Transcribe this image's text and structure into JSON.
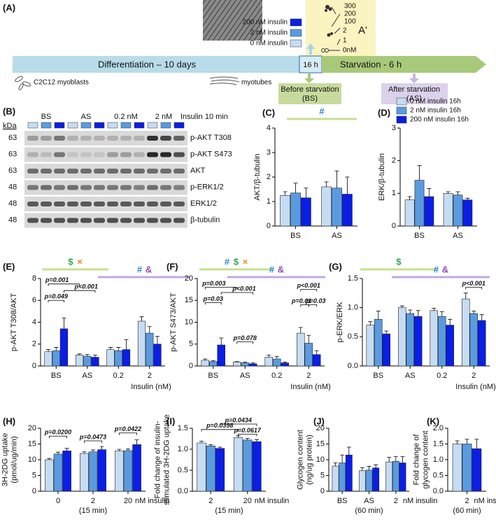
{
  "schematic": {
    "label": "(A)",
    "legend": [
      "200 nM insulin",
      "2 nM insulin",
      "0 nM insulin"
    ],
    "inset": {
      "ticks": [
        "300",
        "200",
        "100",
        "2",
        "1",
        "0nM"
      ],
      "label": "A'"
    },
    "timeline": {
      "differentiation": "Differentiation – 10 days",
      "pretreatment": "16 h",
      "starvation": "Starvation - 6 h"
    },
    "cells": {
      "myoblasts": "C2C12 myoblasts",
      "myotubes": "myotubes"
    },
    "before": [
      "Before starvation",
      "(BS)"
    ],
    "after": [
      "After starvation",
      "(AS)"
    ]
  },
  "blot": {
    "label": "(B)",
    "unit": "kDa",
    "lanes": [
      "BS",
      "AS",
      "0.2 nM",
      "2 nM"
    ],
    "treatment": "Insulin 10 min",
    "rows": [
      {
        "kda": "63",
        "name": "p-AKT T308"
      },
      {
        "kda": "63",
        "name": "p-AKT S473"
      },
      {
        "kda": "63",
        "name": "AKT"
      },
      {
        "kda": "48",
        "name": "p-ERK1/2"
      },
      {
        "kda": "48",
        "name": "ERK1/2"
      },
      {
        "kda": "48",
        "name": "β-tubulin"
      }
    ]
  },
  "chart_data": [
    {
      "type": "bar",
      "panel": "(C)",
      "ylabel": [
        "AKT/β-tubulin"
      ],
      "categories": [
        "BS",
        "AS"
      ],
      "ylim": [
        0,
        4
      ],
      "yticks": [
        0,
        1,
        2,
        3,
        4
      ],
      "series": [
        {
          "color": "#c6dcf2",
          "values": [
            1.25,
            1.6
          ],
          "errors": [
            0.15,
            0.2
          ]
        },
        {
          "color": "#5a9be0",
          "values": [
            1.35,
            1.55
          ],
          "errors": [
            0.4,
            0.7
          ]
        },
        {
          "color": "#0a1ee6",
          "values": [
            1.15,
            1.3
          ],
          "errors": [
            0.4,
            0.7
          ]
        }
      ],
      "groups": [
        {
          "color": "#c5e08f",
          "symbols": [
            {
              "text": "#",
              "color": "#2a8ad8"
            }
          ]
        }
      ]
    },
    {
      "type": "bar",
      "panel": "(D)",
      "ylabel": [
        "ERK/β-tubulin"
      ],
      "categories": [
        "BS",
        "AS"
      ],
      "ylim": [
        0,
        3
      ],
      "yticks": [
        0,
        1,
        2,
        3
      ],
      "legend": "top",
      "series": [
        {
          "name": "0 nM insulin 16h",
          "color": "#c6dcf2",
          "values": [
            0.8,
            1.0
          ],
          "errors": [
            0.1,
            0.05
          ]
        },
        {
          "name": "2 nM insulin 16h",
          "color": "#5a9be0",
          "values": [
            1.4,
            0.95
          ],
          "errors": [
            0.45,
            0.1
          ]
        },
        {
          "name": "200 nM insulin 16h",
          "color": "#0a1ee6",
          "values": [
            0.9,
            0.8
          ],
          "errors": [
            0.25,
            0.05
          ]
        }
      ]
    },
    {
      "type": "bar",
      "panel": "(E)",
      "ylabel": [
        "p-AKT T308/AKT"
      ],
      "xlabel": "Insulin (nM)",
      "categories": [
        "BS",
        "AS",
        "0.2",
        "2"
      ],
      "ylim": [
        0,
        8
      ],
      "yticks": [
        0,
        2,
        4,
        6,
        8
      ],
      "series": [
        {
          "color": "#c6dcf2",
          "values": [
            1.3,
            1.0,
            1.5,
            4.1
          ],
          "errors": [
            0.2,
            0.1,
            0.2,
            0.4
          ]
        },
        {
          "color": "#5a9be0",
          "values": [
            1.4,
            0.9,
            1.4,
            3.0
          ],
          "errors": [
            0.3,
            0.15,
            0.3,
            0.6
          ]
        },
        {
          "color": "#0a1ee6",
          "values": [
            3.4,
            0.8,
            1.5,
            2.0
          ],
          "errors": [
            1.0,
            0.2,
            0.9,
            0.7
          ]
        }
      ],
      "groups": [
        {
          "color": "#c5e08f",
          "symbols": [
            {
              "text": "$",
              "color": "#2fa84f"
            },
            {
              "text": "×",
              "color": "#e8862a"
            }
          ]
        },
        {
          "color": "#c3a9dc",
          "symbols": [
            {
              "text": "#",
              "color": "#2a8ad8"
            },
            {
              "text": "&",
              "color": "#8a4fb8"
            }
          ]
        }
      ],
      "brackets": [
        "p=0.001",
        "p=0.049",
        "p<0.001"
      ]
    },
    {
      "type": "bar",
      "panel": "(F)",
      "ylabel": [
        "p-AKT S473/AKT"
      ],
      "xlabel": "Insulin (nM)",
      "categories": [
        "BS",
        "AS",
        "0.2",
        "2"
      ],
      "ylim": [
        0,
        20
      ],
      "yticks": [
        0,
        5,
        10,
        15,
        20
      ],
      "series": [
        {
          "color": "#c6dcf2",
          "values": [
            1.3,
            0.9,
            2.0,
            7.5
          ],
          "errors": [
            0.3,
            0.1,
            0.5,
            1.3
          ]
        },
        {
          "color": "#5a9be0",
          "values": [
            1.0,
            0.7,
            1.6,
            5.2
          ],
          "errors": [
            0.2,
            0.2,
            0.6,
            1.8
          ]
        },
        {
          "color": "#0a1ee6",
          "values": [
            4.8,
            0.5,
            0.7,
            2.6
          ],
          "errors": [
            1.6,
            0.2,
            0.2,
            0.9
          ]
        }
      ],
      "groups": [
        {
          "color": "#c5e08f",
          "symbols": [
            {
              "text": "#",
              "color": "#2a8ad8"
            },
            {
              "text": "$",
              "color": "#2fa84f"
            },
            {
              "text": "×",
              "color": "#e8862a"
            }
          ]
        },
        {
          "color": "#c3a9dc",
          "symbols": [
            {
              "text": "#",
              "color": "#2a8ad8"
            },
            {
              "text": "&",
              "color": "#8a4fb8"
            }
          ]
        }
      ],
      "brackets": [
        "p=0.003",
        "p=0.03",
        "p<0.001",
        "p=0.078",
        "p<0.001",
        "p=0.01",
        "p=0.03"
      ]
    },
    {
      "type": "bar",
      "panel": "(G)",
      "ylabel": [
        "p-ERK/ERK"
      ],
      "xlabel": "Insulin (nM)",
      "categories": [
        "BS",
        "AS",
        "0.2",
        "2"
      ],
      "ylim": [
        0,
        1.5
      ],
      "yticks": [
        {
          "value": 0,
          "label": "0.0"
        },
        0.5,
        {
          "value": 1,
          "label": "1.0"
        },
        1.5
      ],
      "series": [
        {
          "color": "#c6dcf2",
          "values": [
            0.7,
            1.0,
            0.95,
            1.15
          ],
          "errors": [
            0.06,
            0.03,
            0.04,
            0.1
          ]
        },
        {
          "color": "#5a9be0",
          "values": [
            0.8,
            0.9,
            0.85,
            0.9
          ],
          "errors": [
            0.14,
            0.06,
            0.08,
            0.04
          ]
        },
        {
          "color": "#0a1ee6",
          "values": [
            0.55,
            0.85,
            0.7,
            0.78
          ],
          "errors": [
            0.05,
            0.1,
            0.1,
            0.1
          ]
        }
      ],
      "groups": [
        {
          "color": "#c5e08f",
          "symbols": [
            {
              "text": "$",
              "color": "#2fa84f"
            }
          ]
        },
        {
          "color": "#c3a9dc",
          "symbols": [
            {
              "text": "#",
              "color": "#2a8ad8"
            },
            {
              "text": "&",
              "color": "#8a4fb8"
            }
          ]
        }
      ],
      "brackets": [
        "p<0.001"
      ]
    },
    {
      "type": "bar",
      "panel": "(H)",
      "ylabel": [
        "3H-2DG uptake",
        "(pmol/ug/min)"
      ],
      "categories": [
        "0",
        "2",
        "20"
      ],
      "x_unit": "nM insulin",
      "x_note": "(15 min)",
      "ylim": [
        0,
        20
      ],
      "yticks": [
        0,
        5,
        10,
        15,
        20
      ],
      "series": [
        {
          "color": "#c6dcf2",
          "values": [
            10,
            12,
            12.8
          ],
          "errors": [
            0.4,
            0.5,
            0.5
          ]
        },
        {
          "color": "#5a9be0",
          "values": [
            11.8,
            12.5,
            12.9
          ],
          "errors": [
            0.6,
            0.6,
            0.5
          ]
        },
        {
          "color": "#0a1ee6",
          "values": [
            12.8,
            13.2,
            14.8
          ],
          "errors": [
            0.8,
            1.0,
            1.5
          ]
        }
      ],
      "brackets": [
        "p=0.0200",
        "p=0.0473",
        "p=0.0422"
      ]
    },
    {
      "type": "bar",
      "panel": "(I)",
      "ylabel": [
        "Fold change of insulin-",
        "stimulated 3H-2DG uptake"
      ],
      "categories": [
        "2",
        "20"
      ],
      "x_unit": "nM insulin",
      "x_note": "(15 min)",
      "ylim": [
        0,
        1.5
      ],
      "yticks": [
        {
          "value": 0,
          "label": "0.0"
        },
        0.5,
        {
          "value": 1,
          "label": "1.0"
        },
        1.5
      ],
      "series": [
        {
          "color": "#c6dcf2",
          "values": [
            1.15,
            1.28
          ],
          "errors": [
            0.04,
            0.04
          ]
        },
        {
          "color": "#5a9be0",
          "values": [
            1.08,
            1.22
          ],
          "errors": [
            0.03,
            0.04
          ]
        },
        {
          "color": "#0a1ee6",
          "values": [
            1.02,
            1.18
          ],
          "errors": [
            0.03,
            0.05
          ]
        }
      ],
      "brackets": [
        "p=0.0398",
        "p=0.0617",
        "p=0.0434"
      ]
    },
    {
      "type": "bar",
      "panel": "(J)",
      "ylabel": [
        "Glycogen content",
        "(ng/ug protein)"
      ],
      "categories": [
        "BS",
        "AS",
        "2"
      ],
      "x_unit": "nM insulin",
      "x_note": "(60 min)",
      "ylim": [
        0,
        20
      ],
      "yticks": [
        0,
        5,
        10,
        15,
        20
      ],
      "series": [
        {
          "color": "#c6dcf2",
          "values": [
            8,
            6.5,
            9.3
          ],
          "errors": [
            1,
            1,
            1.5
          ]
        },
        {
          "color": "#5a9be0",
          "values": [
            9,
            6.7,
            9.5
          ],
          "errors": [
            2.5,
            1.2,
            1.5
          ]
        },
        {
          "color": "#0a1ee6",
          "values": [
            11.5,
            7.4,
            9
          ],
          "errors": [
            2.5,
            1,
            2
          ]
        }
      ]
    },
    {
      "type": "bar",
      "panel": "(K)",
      "ylabel": [
        "Fold change of",
        "glycogen content"
      ],
      "categories": [
        "2"
      ],
      "x_unit": "nM insulin",
      "x_note": "(60 min)",
      "ylim": [
        0,
        2
      ],
      "yticks": [
        {
          "value": 0,
          "label": "0.0"
        },
        0.5,
        {
          "value": 1,
          "label": "1.0"
        },
        1.5,
        {
          "value": 2,
          "label": "2.0"
        }
      ],
      "series": [
        {
          "color": "#c6dcf2",
          "values": [
            1.5
          ],
          "errors": [
            0.1
          ]
        },
        {
          "color": "#5a9be0",
          "values": [
            1.5
          ],
          "errors": [
            0.15
          ]
        },
        {
          "color": "#0a1ee6",
          "values": [
            1.35
          ],
          "errors": [
            0.3
          ]
        }
      ]
    }
  ]
}
